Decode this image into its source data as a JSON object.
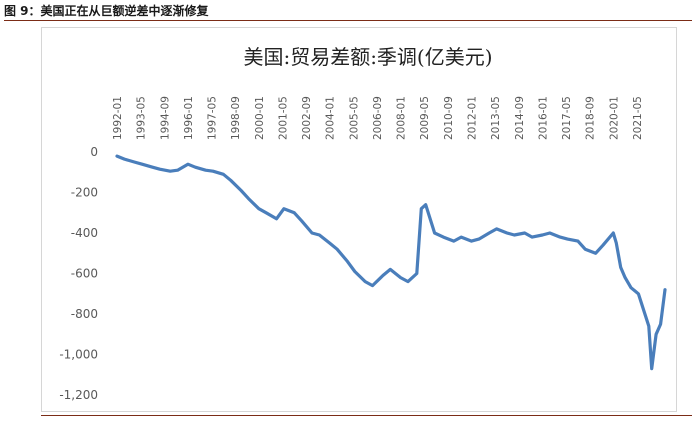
{
  "figure_caption": "图 9：美国正在从巨额逆差中逐渐修复",
  "colors": {
    "line": "#4a7ebb",
    "rule": "#7b2c16",
    "text": "#595959"
  },
  "chart_data": {
    "type": "line",
    "title": "美国:贸易差额:季调(亿美元)",
    "xlabel": "",
    "ylabel": "",
    "x_tick_labels": [
      "1992-01",
      "1993-05",
      "1994-09",
      "1996-01",
      "1997-05",
      "1998-09",
      "2000-01",
      "2001-05",
      "2002-09",
      "2004-01",
      "2005-05",
      "2006-09",
      "2008-01",
      "2009-05",
      "2010-09",
      "2012-01",
      "2013-05",
      "2014-09",
      "2016-01",
      "2017-05",
      "2018-09",
      "2020-01",
      "2021-05"
    ],
    "x_range": [
      "1992-01",
      "2022-12"
    ],
    "ylim": [
      -1200,
      0
    ],
    "y_ticks": [
      0,
      -200,
      -400,
      -600,
      -800,
      -1000,
      -1200
    ],
    "y_tick_labels": [
      "0",
      "-200",
      "-400",
      "-600",
      "-800",
      "-1,000",
      "-1,200"
    ],
    "grid": false,
    "legend": "none",
    "series": [
      {
        "x": [
          "1992-01",
          "1992-06",
          "1993-01",
          "1993-06",
          "1994-01",
          "1994-06",
          "1995-01",
          "1995-06",
          "1996-01",
          "1996-06",
          "1997-01",
          "1997-06",
          "1998-01",
          "1998-06",
          "1999-01",
          "1999-06",
          "2000-01",
          "2000-06",
          "2001-01",
          "2001-06",
          "2002-01",
          "2002-06",
          "2003-01",
          "2003-06",
          "2004-01",
          "2004-06",
          "2005-01",
          "2005-06",
          "2006-01",
          "2006-06",
          "2007-01",
          "2007-06",
          "2008-01",
          "2008-06",
          "2008-12",
          "2009-03",
          "2009-06",
          "2009-12",
          "2010-06",
          "2011-01",
          "2011-06",
          "2012-01",
          "2012-06",
          "2013-01",
          "2013-06",
          "2014-01",
          "2014-06",
          "2015-01",
          "2015-06",
          "2016-01",
          "2016-06",
          "2017-01",
          "2017-06",
          "2018-01",
          "2018-06",
          "2019-01",
          "2019-06",
          "2020-01",
          "2020-03",
          "2020-06",
          "2020-09",
          "2021-01",
          "2021-06",
          "2022-01",
          "2022-03",
          "2022-06",
          "2022-09",
          "2022-12"
        ],
        "values": [
          -20,
          -35,
          -50,
          -60,
          -75,
          -85,
          -95,
          -90,
          -60,
          -75,
          -90,
          -95,
          -110,
          -140,
          -190,
          -230,
          -280,
          -300,
          -330,
          -280,
          -300,
          -340,
          -400,
          -410,
          -450,
          -480,
          -540,
          -590,
          -640,
          -660,
          -610,
          -580,
          -620,
          -640,
          -600,
          -280,
          -260,
          -400,
          -420,
          -440,
          -420,
          -440,
          -430,
          -400,
          -380,
          -400,
          -410,
          -400,
          -420,
          -410,
          -400,
          -420,
          -430,
          -440,
          -480,
          -500,
          -460,
          -400,
          -450,
          -570,
          -620,
          -670,
          -700,
          -860,
          -1070,
          -900,
          -850,
          -680
        ]
      }
    ]
  }
}
